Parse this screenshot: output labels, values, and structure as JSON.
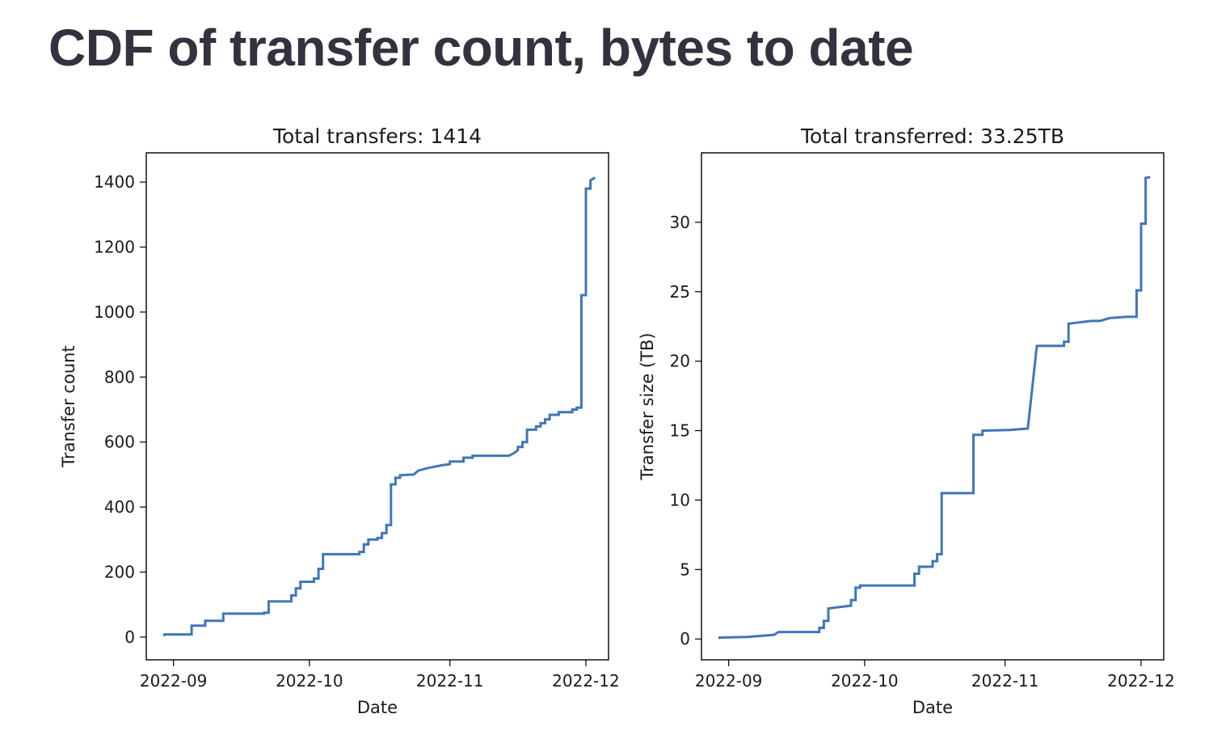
{
  "page": {
    "title": "CDF of transfer count, bytes to date"
  },
  "colors": {
    "line": "#3f77b8",
    "title_text": "#31333f"
  },
  "chart_data": [
    {
      "type": "line",
      "title": "Total transfers: 1414",
      "xlabel": "Date",
      "ylabel": "Transfer count",
      "xlim": [
        "2022-08-26",
        "2022-12-06"
      ],
      "ylim": [
        -70,
        1490
      ],
      "x_ticks": [
        "2022-09-01",
        "2022-10-01",
        "2022-11-01",
        "2022-12-01"
      ],
      "x_tick_labels": [
        "2022-09",
        "2022-10",
        "2022-11",
        "2022-12"
      ],
      "y_ticks": [
        0,
        200,
        400,
        600,
        800,
        1000,
        1200,
        1400
      ],
      "y_tick_labels": [
        "0",
        "200",
        "400",
        "600",
        "800",
        "1000",
        "1200",
        "1400"
      ],
      "grid": false,
      "legend": false,
      "series": [
        {
          "x": [
            "2022-08-30",
            "2022-08-30",
            "2022-09-05",
            "2022-09-05",
            "2022-09-08",
            "2022-09-08",
            "2022-09-12",
            "2022-09-12",
            "2022-09-21",
            "2022-09-21",
            "2022-09-22",
            "2022-09-22",
            "2022-09-27",
            "2022-09-27",
            "2022-09-28",
            "2022-09-28",
            "2022-09-29",
            "2022-09-29",
            "2022-10-02",
            "2022-10-02",
            "2022-10-03",
            "2022-10-03",
            "2022-10-04",
            "2022-10-04",
            "2022-10-12",
            "2022-10-12",
            "2022-10-13",
            "2022-10-13",
            "2022-10-14",
            "2022-10-14",
            "2022-10-16",
            "2022-10-16",
            "2022-10-17",
            "2022-10-17",
            "2022-10-18",
            "2022-10-18",
            "2022-10-19",
            "2022-10-19",
            "2022-10-20",
            "2022-10-20",
            "2022-10-21",
            "2022-10-21",
            "2022-10-24",
            "2022-10-25",
            "2022-10-27",
            "2022-10-30",
            "2022-11-01",
            "2022-11-01",
            "2022-11-04",
            "2022-11-04",
            "2022-11-06",
            "2022-11-06",
            "2022-11-14",
            "2022-11-15",
            "2022-11-16",
            "2022-11-16",
            "2022-11-17",
            "2022-11-17",
            "2022-11-18",
            "2022-11-18",
            "2022-11-20",
            "2022-11-20",
            "2022-11-21",
            "2022-11-21",
            "2022-11-22",
            "2022-11-22",
            "2022-11-23",
            "2022-11-23",
            "2022-11-25",
            "2022-11-25",
            "2022-11-28",
            "2022-11-28",
            "2022-11-29",
            "2022-11-29",
            "2022-11-30",
            "2022-11-30",
            "2022-12-01",
            "2022-12-01",
            "2022-12-02",
            "2022-12-02",
            "2022-12-03"
          ],
          "y": [
            3,
            8,
            8,
            35,
            35,
            50,
            50,
            72,
            72,
            75,
            75,
            110,
            110,
            128,
            128,
            150,
            150,
            170,
            170,
            180,
            180,
            210,
            210,
            255,
            255,
            262,
            262,
            285,
            285,
            300,
            300,
            305,
            305,
            320,
            320,
            345,
            345,
            470,
            470,
            490,
            490,
            498,
            500,
            512,
            520,
            528,
            532,
            540,
            540,
            552,
            552,
            558,
            558,
            565,
            575,
            585,
            585,
            600,
            600,
            638,
            638,
            648,
            648,
            658,
            658,
            670,
            670,
            684,
            684,
            692,
            692,
            700,
            700,
            706,
            706,
            1052,
            1052,
            1380,
            1380,
            1405,
            1414
          ]
        }
      ]
    },
    {
      "type": "line",
      "title": "Total transferred: 33.25TB",
      "xlabel": "Date",
      "ylabel": "Transfer size (TB)",
      "xlim": [
        "2022-08-26",
        "2022-12-06"
      ],
      "ylim": [
        -1.5,
        35
      ],
      "x_ticks": [
        "2022-09-01",
        "2022-10-01",
        "2022-11-01",
        "2022-12-01"
      ],
      "x_tick_labels": [
        "2022-09",
        "2022-10",
        "2022-11",
        "2022-12"
      ],
      "y_ticks": [
        0,
        5,
        10,
        15,
        20,
        25,
        30
      ],
      "y_tick_labels": [
        "0",
        "5",
        "10",
        "15",
        "20",
        "25",
        "30"
      ],
      "grid": false,
      "legend": false,
      "series": [
        {
          "x": [
            "2022-08-30",
            "2022-08-30",
            "2022-09-05",
            "2022-09-11",
            "2022-09-12",
            "2022-09-21",
            "2022-09-21",
            "2022-09-22",
            "2022-09-22",
            "2022-09-23",
            "2022-09-23",
            "2022-09-28",
            "2022-09-28",
            "2022-09-29",
            "2022-09-29",
            "2022-09-30",
            "2022-09-30",
            "2022-10-12",
            "2022-10-12",
            "2022-10-13",
            "2022-10-13",
            "2022-10-16",
            "2022-10-16",
            "2022-10-17",
            "2022-10-17",
            "2022-10-18",
            "2022-10-18",
            "2022-10-25",
            "2022-10-25",
            "2022-10-27",
            "2022-10-27",
            "2022-11-02",
            "2022-11-06",
            "2022-11-08",
            "2022-11-14",
            "2022-11-14",
            "2022-11-15",
            "2022-11-15",
            "2022-11-20",
            "2022-11-22",
            "2022-11-24",
            "2022-11-24",
            "2022-11-28",
            "2022-11-30",
            "2022-11-30",
            "2022-12-01",
            "2022-12-01",
            "2022-12-02",
            "2022-12-02",
            "2022-12-03"
          ],
          "y": [
            0,
            0.1,
            0.15,
            0.3,
            0.5,
            0.5,
            0.8,
            0.8,
            1.3,
            1.3,
            2.2,
            2.4,
            2.8,
            2.8,
            3.7,
            3.7,
            3.85,
            3.85,
            4.7,
            4.7,
            5.2,
            5.2,
            5.6,
            5.6,
            6.1,
            6.1,
            10.5,
            10.5,
            14.7,
            14.7,
            15.0,
            15.05,
            15.15,
            21.1,
            21.1,
            21.4,
            21.4,
            22.7,
            22.9,
            22.9,
            23.1,
            23.1,
            23.2,
            23.2,
            25.1,
            25.1,
            29.9,
            29.9,
            33.2,
            33.25
          ]
        }
      ]
    }
  ]
}
